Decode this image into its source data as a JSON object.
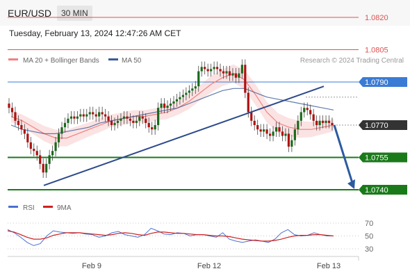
{
  "header": {
    "pair": "EUR/USD",
    "timeframe": "30 MIN",
    "datetime": "Tuesday, February 13, 2024 12:47:26 AM CET"
  },
  "legend": {
    "ma20": "MA 20 + Bollinger Bands",
    "ma50": "MA 50",
    "credit": "Research © 2024 Trading Central",
    "rsi": "RSI",
    "ma9": "9MA"
  },
  "colors": {
    "ma20": "#f08080",
    "ma50": "#3a5a9a",
    "bollinger_fill": "#fbe3e3",
    "resistance": "#e05050",
    "pivot": "#3a7bd5",
    "support": "#1a7a1a",
    "trend": "#2c4a8a",
    "forecast_arrow": "#2c5aa0",
    "current": "#333333",
    "candle_up": "#1a6a1a",
    "candle_down": "#b01010",
    "rsi": "#4a70d0",
    "rsi_ma": "#d02020"
  },
  "chart_data": [
    {
      "type": "candlestick",
      "instrument": "EUR/USD",
      "timeframe": "30 MIN",
      "x_labels": [
        "Feb 9",
        "Feb 12",
        "Feb 13"
      ],
      "ylim": [
        1.0735,
        1.0825
      ],
      "levels": [
        {
          "value": 1.082,
          "label": "1.0820",
          "kind": "resistance"
        },
        {
          "value": 1.0805,
          "label": "1.0805",
          "kind": "resistance"
        },
        {
          "value": 1.079,
          "label": "1.0790",
          "kind": "pivot"
        },
        {
          "value": 1.077,
          "label": "1.0770",
          "kind": "current"
        },
        {
          "value": 1.0755,
          "label": "1.0755",
          "kind": "support"
        },
        {
          "value": 1.074,
          "label": "1.0740",
          "kind": "support"
        }
      ],
      "closes": [
        1.0778,
        1.0776,
        1.0772,
        1.077,
        1.0768,
        1.0766,
        1.0762,
        1.0759,
        1.0758,
        1.0756,
        1.0752,
        1.0748,
        1.0752,
        1.0756,
        1.0758,
        1.0762,
        1.0766,
        1.0769,
        1.0771,
        1.0773,
        1.0774,
        1.0773,
        1.0774,
        1.0775,
        1.0774,
        1.0775,
        1.0776,
        1.0775,
        1.0774,
        1.0776,
        1.0775,
        1.0774,
        1.0772,
        1.077,
        1.0771,
        1.0772,
        1.0773,
        1.0774,
        1.0773,
        1.0772,
        1.0771,
        1.0772,
        1.0774,
        1.0773,
        1.0771,
        1.0769,
        1.0768,
        1.077,
        1.0778,
        1.078,
        1.0778,
        1.0779,
        1.078,
        1.0781,
        1.0782,
        1.0783,
        1.0784,
        1.0785,
        1.0786,
        1.0787,
        1.0788,
        1.0795,
        1.0797,
        1.0796,
        1.0795,
        1.0796,
        1.0797,
        1.0796,
        1.0795,
        1.0794,
        1.0795,
        1.0793,
        1.0794,
        1.0792,
        1.0794,
        1.0798,
        1.0785,
        1.0776,
        1.0772,
        1.077,
        1.0768,
        1.0767,
        1.0768,
        1.0766,
        1.0765,
        1.0767,
        1.0769,
        1.0767,
        1.0765,
        1.0766,
        1.076,
        1.0763,
        1.0768,
        1.0772,
        1.0776,
        1.0778,
        1.0777,
        1.0775,
        1.0772,
        1.077,
        1.0772,
        1.0771,
        1.0772,
        1.0771,
        1.077
      ],
      "moving_averages": [
        {
          "name": "MA 20 + Bollinger Bands",
          "values": [
            1.0774,
            1.0772,
            1.0769,
            1.0766,
            1.0764,
            1.0764,
            1.0766,
            1.0768,
            1.077,
            1.0772,
            1.0773,
            1.0774,
            1.0774,
            1.0775,
            1.0776,
            1.0778,
            1.0781,
            1.0785,
            1.0789,
            1.0792,
            1.0794,
            1.0791,
            1.0784,
            1.0776,
            1.0771,
            1.0769,
            1.0768,
            1.0768,
            1.0769,
            1.077
          ]
        },
        {
          "name": "MA 50",
          "values": [
            1.077,
            1.0768,
            1.0767,
            1.0766,
            1.0766,
            1.0767,
            1.0768,
            1.0769,
            1.0771,
            1.0772,
            1.0773,
            1.0774,
            1.0775,
            1.0776,
            1.0777,
            1.0778,
            1.078,
            1.0782,
            1.0784,
            1.0786,
            1.0787,
            1.0787,
            1.0785,
            1.0783,
            1.0782,
            1.0781,
            1.078,
            1.0779,
            1.0778,
            1.0777
          ]
        }
      ],
      "trendline": {
        "from": 1.0742,
        "to": 1.0788
      },
      "forecast": {
        "from": 1.077,
        "to": 1.074
      }
    },
    {
      "type": "line",
      "title": "RSI",
      "ylim": [
        20,
        80
      ],
      "y_ticks": [
        "70",
        "50",
        "30"
      ],
      "series": [
        {
          "name": "RSI",
          "values": [
            60,
            55,
            48,
            40,
            35,
            38,
            50,
            58,
            56,
            55,
            54,
            55,
            53,
            52,
            48,
            50,
            55,
            57,
            52,
            50,
            48,
            52,
            62,
            58,
            53,
            52,
            55,
            54,
            50,
            52,
            52,
            50,
            48,
            55,
            45,
            42,
            40,
            42,
            44,
            42,
            40,
            45,
            55,
            60,
            52,
            50,
            51,
            55,
            52,
            50,
            50
          ]
        },
        {
          "name": "9MA",
          "values": [
            58,
            56,
            52,
            48,
            45,
            45,
            47,
            51,
            53,
            55,
            55,
            55,
            54,
            53,
            52,
            51,
            52,
            54,
            55,
            54,
            52,
            51,
            54,
            56,
            56,
            55,
            54,
            54,
            53,
            52,
            52,
            51,
            50,
            50,
            49,
            47,
            45,
            44,
            43,
            42,
            42,
            43,
            45,
            48,
            50,
            51,
            51,
            52,
            52,
            51,
            50
          ]
        }
      ]
    }
  ]
}
